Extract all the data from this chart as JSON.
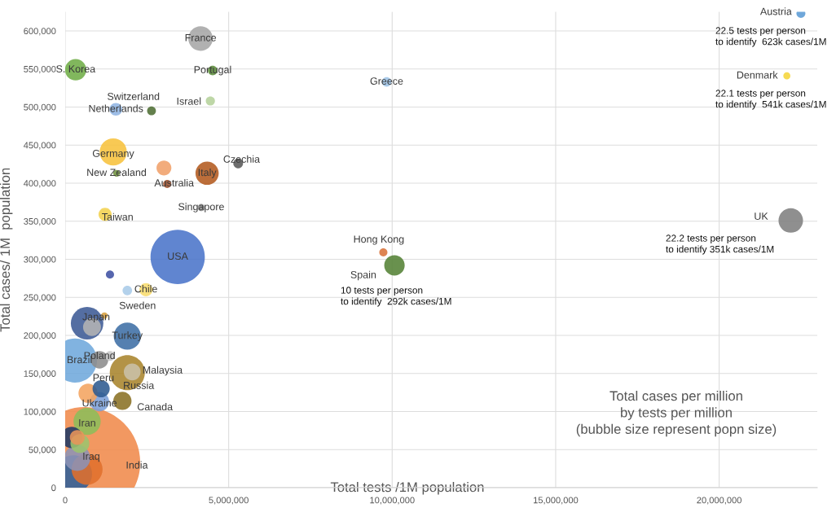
{
  "chart_data": {
    "type": "bubble",
    "xlabel": "Total tests /1M population",
    "ylabel": "Total cases/ 1M  population",
    "xlim": [
      0,
      23000000
    ],
    "ylim": [
      0,
      625000
    ],
    "xticks": [
      0,
      {
        "value": 5000000,
        "label": "5,000,000"
      },
      {
        "value": 10000000,
        "label": "10,000,000"
      },
      {
        "value": 15000000,
        "label": "15,000,000"
      },
      {
        "value": 20000000,
        "label": "20,000,000"
      }
    ],
    "yticks": [
      0,
      {
        "value": 50000,
        "label": "50,000"
      },
      {
        "value": 100000,
        "label": "100,000"
      },
      {
        "value": 150000,
        "label": "150,000"
      },
      {
        "value": 200000,
        "label": "200,000"
      },
      {
        "value": 250000,
        "label": "250,000"
      },
      {
        "value": 300000,
        "label": "300,000"
      },
      {
        "value": 350000,
        "label": "350,000"
      },
      {
        "value": 400000,
        "label": "400,000"
      },
      {
        "value": 450000,
        "label": "450,000"
      },
      {
        "value": 500000,
        "label": "500,000"
      },
      {
        "value": 550000,
        "label": "550,000"
      },
      {
        "value": 600000,
        "label": "600,000"
      }
    ],
    "grid": true,
    "legend": false,
    "series": [
      {
        "name": "India",
        "color": "#f08a4b",
        "x": [
          600000
        ],
        "values": [
          33000
        ],
        "sizes": [
          1.0
        ]
      },
      {
        "name": "USA",
        "color": "#4a74c9",
        "x": [
          3440000
        ],
        "values": [
          303000
        ],
        "sizes": [
          0.24
        ]
      },
      {
        "name": "Brazil",
        "color": "#6fa8dc",
        "x": [
          300000
        ],
        "values": [
          167000
        ],
        "sizes": [
          0.158
        ]
      },
      {
        "color": "#2f5f98",
        "x": [
          250000
        ],
        "values": [
          18000
        ],
        "sizes": [
          0.114
        ]
      },
      {
        "name": "Russia",
        "color": "#a8842c",
        "x": [
          1900000
        ],
        "values": [
          151000
        ],
        "sizes": [
          0.1
        ]
      },
      {
        "color": "#e0702c",
        "x": [
          670000
        ],
        "values": [
          24000
        ],
        "sizes": [
          0.078
        ]
      },
      {
        "name": "Japan",
        "color": "#3c5a95",
        "x": [
          670000
        ],
        "values": [
          216000
        ],
        "sizes": [
          0.086
        ]
      },
      {
        "name": "Turkey",
        "color": "#3e6ea5",
        "x": [
          1900000
        ],
        "values": [
          199000
        ],
        "sizes": [
          0.06
        ]
      },
      {
        "name": "Germany",
        "color": "#f7c23c",
        "x": [
          1470000
        ],
        "values": [
          441000
        ],
        "sizes": [
          0.06
        ]
      },
      {
        "name": "Iran",
        "color": "#8cbd5a",
        "x": [
          670000
        ],
        "values": [
          87000
        ],
        "sizes": [
          0.06
        ]
      },
      {
        "color": "#8d93b5",
        "x": [
          370000
        ],
        "values": [
          39000
        ],
        "sizes": [
          0.055
        ]
      },
      {
        "name": "France",
        "color": "#a6a6a6",
        "x": [
          4140000
        ],
        "values": [
          590000
        ],
        "sizes": [
          0.049
        ]
      },
      {
        "name": "UK",
        "color": "#7f7f7f",
        "x": [
          22190000
        ],
        "values": [
          351000
        ],
        "sizes": [
          0.049
        ]
      },
      {
        "name": "Italy",
        "color": "#b35a1f",
        "x": [
          4340000
        ],
        "values": [
          413000
        ],
        "sizes": [
          0.044
        ]
      },
      {
        "name": "S. Korea",
        "color": "#70ad47",
        "x": [
          320000
        ],
        "values": [
          549000
        ],
        "sizes": [
          0.037
        ]
      },
      {
        "color": "#1f3864",
        "x": [
          200000
        ],
        "values": [
          66000
        ],
        "sizes": [
          0.037
        ]
      },
      {
        "name": "Spain",
        "color": "#548235",
        "x": [
          10070000
        ],
        "values": [
          292000
        ],
        "sizes": [
          0.034
        ]
      },
      {
        "name": "Ukraine",
        "color": "#7b9fd8",
        "x": [
          1050000
        ],
        "values": [
          113000
        ],
        "sizes": [
          0.03
        ]
      },
      {
        "color": "#f4a460",
        "x": [
          700000
        ],
        "values": [
          124000
        ],
        "sizes": [
          0.03
        ]
      },
      {
        "name": "Iraq",
        "color": "#9bc46d",
        "x": [
          450000
        ],
        "values": [
          58000
        ],
        "sizes": [
          0.029
        ]
      },
      {
        "name": "Canada",
        "color": "#8a7124",
        "x": [
          1750000
        ],
        "values": [
          114000
        ],
        "sizes": [
          0.027
        ]
      },
      {
        "color": "#b4b4b4",
        "x": [
          820000
        ],
        "values": [
          211000
        ],
        "sizes": [
          0.026
        ]
      },
      {
        "name": "Poland",
        "color": "#8c8c8c",
        "x": [
          1050000
        ],
        "values": [
          168000
        ],
        "sizes": [
          0.025
        ]
      },
      {
        "name": "Peru",
        "color": "#2e5a8f",
        "x": [
          1100000
        ],
        "values": [
          130000
        ],
        "sizes": [
          0.024
        ]
      },
      {
        "name": "Malaysia",
        "color": "#c9c0a8",
        "x": [
          2050000
        ],
        "values": [
          152000
        ],
        "sizes": [
          0.023
        ]
      },
      {
        "name": "Australia",
        "color": "#f0a06a",
        "x": [
          3020000
        ],
        "values": [
          420000
        ],
        "sizes": [
          0.018
        ]
      },
      {
        "color": "#e8955a",
        "x": [
          370000
        ],
        "values": [
          66000
        ],
        "sizes": [
          0.018
        ]
      },
      {
        "name": "Taiwan",
        "color": "#f2d14e",
        "x": [
          1220000
        ],
        "values": [
          359000
        ],
        "sizes": [
          0.014
        ]
      },
      {
        "name": "Chile",
        "color": "#f8dc6e",
        "x": [
          2470000
        ],
        "values": [
          260000
        ],
        "sizes": [
          0.014
        ]
      },
      {
        "name": "Netherlands",
        "color": "#8fb4e3",
        "x": [
          1550000
        ],
        "values": [
          497000
        ],
        "sizes": [
          0.013
        ]
      },
      {
        "color": "#c8c8c8",
        "x": [
          1370000
        ],
        "values": [
          173000
        ],
        "sizes": [
          0.008
        ]
      },
      {
        "color": "#a0522d",
        "x": [
          3120000
        ],
        "values": [
          399000
        ],
        "sizes": [
          0.0054
        ]
      },
      {
        "name": "Czechia",
        "color": "#595959",
        "x": [
          5290000
        ],
        "values": [
          426000
        ],
        "sizes": [
          0.0077
        ]
      },
      {
        "name": "Greece",
        "color": "#9dc3e6",
        "x": [
          9830000
        ],
        "values": [
          533000
        ],
        "sizes": [
          0.0075
        ]
      },
      {
        "name": "Portugal",
        "color": "#5b8c3a",
        "x": [
          4510000
        ],
        "values": [
          548000
        ],
        "sizes": [
          0.0074
        ]
      },
      {
        "name": "Sweden",
        "color": "#a9cbe8",
        "x": [
          1900000
        ],
        "values": [
          259000
        ],
        "sizes": [
          0.0074
        ]
      },
      {
        "name": "Israel",
        "color": "#b5d19b",
        "x": [
          4440000
        ],
        "values": [
          508000
        ],
        "sizes": [
          0.0068
        ]
      },
      {
        "name": "Switzerland",
        "color": "#4e6e34",
        "x": [
          2640000
        ],
        "values": [
          495000
        ],
        "sizes": [
          0.0063
        ]
      },
      {
        "color": "#3f51a3",
        "x": [
          1370000
        ],
        "values": [
          280000
        ],
        "sizes": [
          0.0054
        ]
      },
      {
        "name": "Hong Kong",
        "color": "#d9733a",
        "x": [
          9730000
        ],
        "values": [
          309000
        ],
        "sizes": [
          0.0054
        ]
      },
      {
        "name": "Austria",
        "color": "#5b9bd5",
        "x": [
          22500000
        ],
        "values": [
          623000
        ],
        "sizes": [
          0.0065
        ]
      },
      {
        "color": "#d8a040",
        "x": [
          1200000
        ],
        "values": [
          226000
        ],
        "sizes": [
          0.0035
        ]
      },
      {
        "name": "Singapore",
        "color": "#8c8c8c",
        "x": [
          4160000
        ],
        "values": [
          368000
        ],
        "sizes": [
          0.004
        ]
      },
      {
        "name": "New Zealand",
        "color": "#70913f",
        "x": [
          1570000
        ],
        "values": [
          413000
        ],
        "sizes": [
          0.0037
        ]
      },
      {
        "name": "Denmark",
        "color": "#f5d53a",
        "x": [
          22070000
        ],
        "values": [
          541000
        ],
        "sizes": [
          0.004
        ]
      }
    ],
    "annotations": [
      "22.5 tests per person\nto identify  623k cases/1M",
      "22.1 tests per person\nto identify  541k cases/1M",
      "22.2 tests per person\nto identify 351k cases/1M",
      "10 tests per person\nto identify  292k cases/1M",
      "Total cases per million\nby tests per million\n(bubble size represent popn size)"
    ]
  }
}
